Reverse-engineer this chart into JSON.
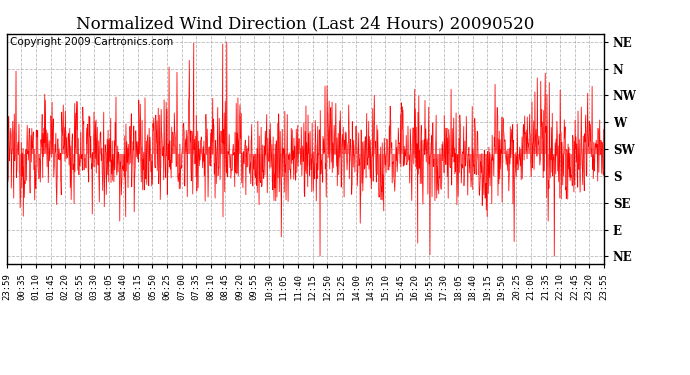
{
  "title": "Normalized Wind Direction (Last 24 Hours) 20090520",
  "copyright_text": "Copyright 2009 Cartronics.com",
  "background_color": "#ffffff",
  "line_color": "#ff0000",
  "grid_color": "#aaaaaa",
  "ytick_labels": [
    "NE",
    "N",
    "NW",
    "W",
    "SW",
    "S",
    "SE",
    "E",
    "NE"
  ],
  "ytick_values": [
    8,
    7,
    6,
    5,
    4,
    3,
    2,
    1,
    0
  ],
  "ylim": [
    -0.3,
    8.3
  ],
  "xtick_labels": [
    "23:59",
    "00:35",
    "01:10",
    "01:45",
    "02:20",
    "02:55",
    "03:30",
    "04:05",
    "04:40",
    "05:15",
    "05:50",
    "06:25",
    "07:00",
    "07:35",
    "08:10",
    "08:45",
    "09:20",
    "09:55",
    "10:30",
    "11:05",
    "11:40",
    "12:15",
    "12:50",
    "13:25",
    "14:00",
    "14:35",
    "15:10",
    "15:45",
    "16:20",
    "16:55",
    "17:30",
    "18:05",
    "18:40",
    "19:15",
    "19:50",
    "20:25",
    "21:00",
    "21:35",
    "22:10",
    "22:45",
    "23:20",
    "23:55"
  ],
  "title_fontsize": 12,
  "copyright_fontsize": 7.5,
  "tick_fontsize": 6.5,
  "ytick_fontsize": 8.5,
  "n_points": 1440,
  "base_value": 3.8,
  "noise_std": 0.9,
  "random_seed": 12345
}
